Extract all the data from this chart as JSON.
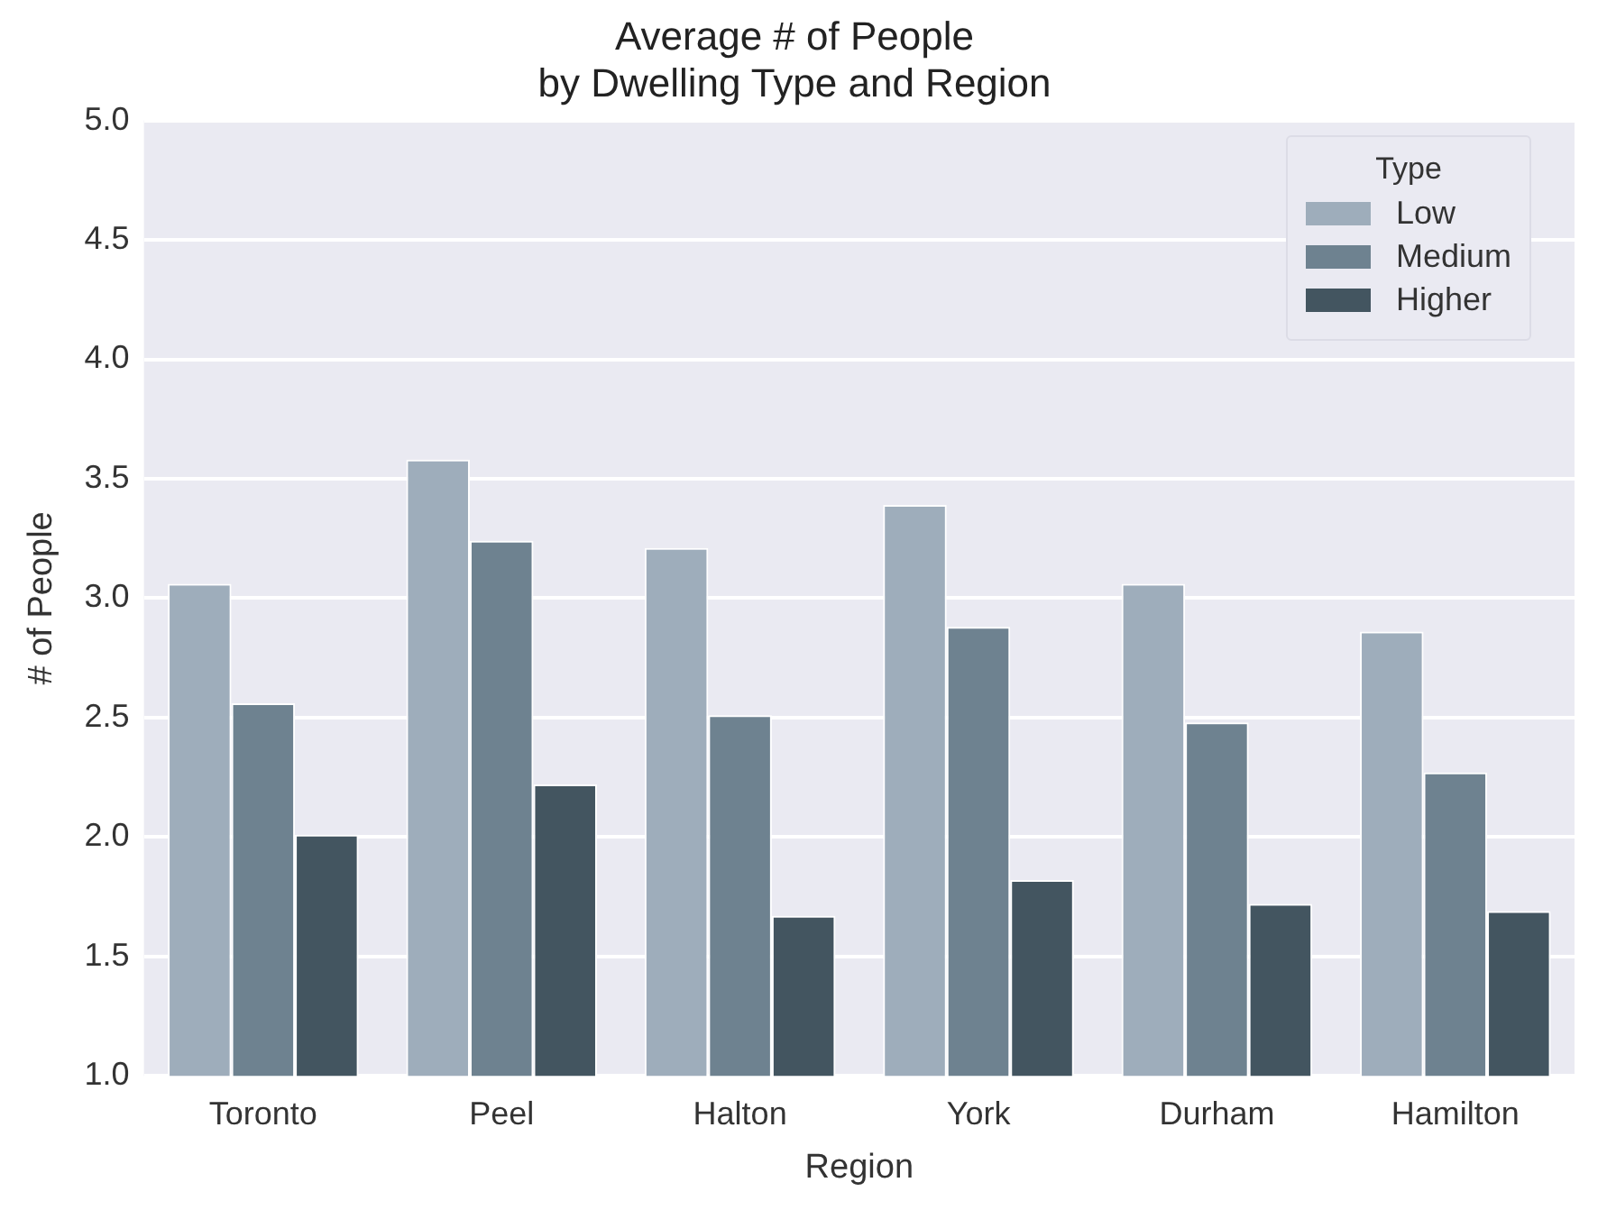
{
  "chart_data": {
    "type": "bar",
    "title": "Average # of People\nby Dwelling Type and Region",
    "xlabel": "Region",
    "ylabel": "# of People",
    "legend_title": "Type",
    "categories": [
      "Toronto",
      "Peel",
      "Halton",
      "York",
      "Durham",
      "Hamilton"
    ],
    "series": [
      {
        "name": "Low",
        "color": "#9eadbb",
        "values": [
          3.06,
          3.58,
          3.21,
          3.39,
          3.06,
          2.86
        ]
      },
      {
        "name": "Medium",
        "color": "#6e8290",
        "values": [
          2.56,
          3.24,
          2.51,
          2.88,
          2.48,
          2.27
        ]
      },
      {
        "name": "Higher",
        "color": "#435560",
        "values": [
          2.01,
          2.22,
          1.67,
          1.82,
          1.72,
          1.69
        ]
      }
    ],
    "ylim": [
      1,
      5
    ],
    "yticks": [
      {
        "value": 1,
        "label": "1.0"
      },
      1.5,
      {
        "value": 2,
        "label": "2.0"
      },
      2.5,
      {
        "value": 3,
        "label": "3.0"
      },
      3.5,
      {
        "value": 4,
        "label": "4.0"
      },
      4.5,
      {
        "value": 5,
        "label": "5.0"
      }
    ],
    "grid": "y",
    "legend": "top right"
  }
}
